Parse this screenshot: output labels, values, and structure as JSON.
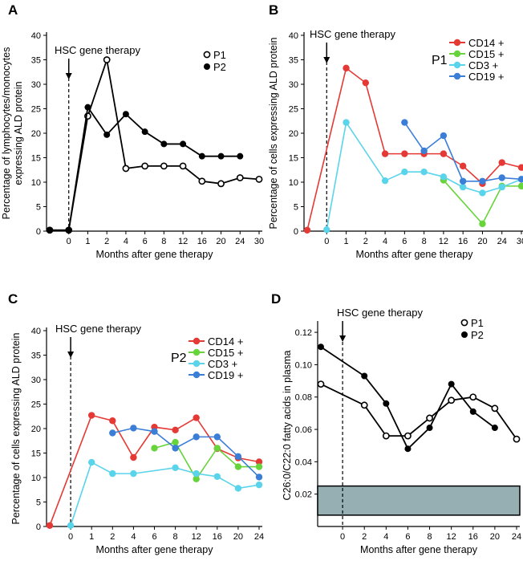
{
  "figure_title": "",
  "chart_data": [
    {
      "panel": "A",
      "type": "line",
      "title": "",
      "annotation": "HSC gene therapy",
      "ylabel": "Percentage of lymphocytes/monocytes expressing ALD protein",
      "ylabel_lines": [
        "Percentage of lymphocytes/monocytes",
        "expressing ALD protein"
      ],
      "xlabel": "Months after gene therapy",
      "ylim": [
        0,
        40
      ],
      "yticks": [
        "0",
        "5",
        "10",
        "15",
        "20",
        "25",
        "30",
        "35",
        "40"
      ],
      "x_categories": [
        "",
        "0",
        "1",
        "2",
        "4",
        "6",
        "8",
        "12",
        "16",
        "20",
        "24",
        "30"
      ],
      "x_label_indices": [
        1,
        2,
        3,
        4,
        5,
        6,
        7,
        8,
        9,
        10,
        11
      ],
      "series": [
        {
          "name": "P1",
          "marker": "open",
          "color": "#000000",
          "x": [
            0,
            1,
            2,
            3,
            4,
            5,
            6,
            7,
            8,
            9,
            10,
            11
          ],
          "y": [
            0.2,
            0.2,
            23.5,
            35,
            12.8,
            13.3,
            13.3,
            13.3,
            10.2,
            9.7,
            10.9,
            10.6
          ]
        },
        {
          "name": "P2",
          "marker": "filled",
          "color": "#000000",
          "x": [
            0,
            1,
            2,
            3,
            4,
            5,
            6,
            7,
            8,
            9,
            10
          ],
          "y": [
            0.2,
            0.2,
            25.3,
            19.7,
            23.9,
            20.3,
            17.8,
            17.8,
            15.3,
            15.3,
            15.3
          ]
        }
      ]
    },
    {
      "panel": "B",
      "type": "line",
      "title": "P1",
      "annotation": "HSC gene therapy",
      "ylabel": "Percentage of cells expressing ALD protein",
      "xlabel": "Months after gene therapy",
      "ylim": [
        0,
        40
      ],
      "yticks": [
        "0",
        "5",
        "10",
        "15",
        "20",
        "25",
        "30",
        "35",
        "40"
      ],
      "x_categories": [
        "",
        "0",
        "1",
        "2",
        "4",
        "6",
        "8",
        "12",
        "16",
        "20",
        "24",
        "30"
      ],
      "x_label_indices": [
        1,
        2,
        3,
        4,
        5,
        6,
        7,
        8,
        9,
        10,
        11
      ],
      "series": [
        {
          "name": "CD14 +",
          "color": "#e53935",
          "x": [
            0,
            2,
            3,
            4,
            5,
            6,
            7,
            8,
            9,
            10,
            11
          ],
          "y": [
            0.2,
            33.3,
            30.3,
            15.8,
            15.8,
            15.8,
            15.8,
            13.3,
            9.7,
            14.0,
            13.0
          ]
        },
        {
          "name": "CD15 +",
          "color": "#66d43a",
          "x": [
            7,
            9,
            10,
            11
          ],
          "y": [
            10.4,
            1.5,
            9.2,
            9.2
          ]
        },
        {
          "name": "CD3 +",
          "color": "#5ad4ea",
          "x": [
            1,
            2,
            4,
            5,
            6,
            7,
            8,
            9,
            10,
            11
          ],
          "y": [
            0.3,
            22.2,
            10.3,
            12.1,
            12.1,
            11.1,
            9.0,
            7.8,
            9.0,
            10.6
          ]
        },
        {
          "name": "CD19 +",
          "color": "#3a7ed8",
          "x": [
            5,
            6,
            7,
            8,
            9,
            10,
            11
          ],
          "y": [
            22.2,
            16.4,
            19.5,
            10.2,
            10.2,
            10.9,
            10.6
          ]
        }
      ]
    },
    {
      "panel": "C",
      "type": "line",
      "title": "P2",
      "annotation": "HSC gene therapy",
      "ylabel": "Percentage of cells expressing ALD protein",
      "xlabel": "Months after gene therapy",
      "ylim": [
        0,
        40
      ],
      "yticks": [
        "0",
        "5",
        "10",
        "15",
        "20",
        "25",
        "30",
        "35",
        "40"
      ],
      "x_categories": [
        "",
        "0",
        "1",
        "2",
        "4",
        "6",
        "8",
        "12",
        "16",
        "20",
        "24"
      ],
      "x_label_indices": [
        1,
        2,
        3,
        4,
        5,
        6,
        7,
        8,
        9,
        10
      ],
      "series": [
        {
          "name": "CD14 +",
          "color": "#e53935",
          "x": [
            0,
            2,
            3,
            4,
            5,
            6,
            7,
            8,
            9,
            10
          ],
          "y": [
            0.2,
            22.7,
            21.6,
            14.1,
            20.3,
            19.7,
            22.2,
            15.9,
            14.0,
            13.2
          ]
        },
        {
          "name": "CD15 +",
          "color": "#66d43a",
          "x": [
            5,
            6,
            7,
            8,
            9,
            10
          ],
          "y": [
            16.0,
            17.2,
            9.7,
            16.0,
            12.2,
            12.2
          ]
        },
        {
          "name": "CD3 +",
          "color": "#5ad4ea",
          "x": [
            1,
            2,
            3,
            4,
            6,
            7,
            8,
            9,
            10
          ],
          "y": [
            0.2,
            13.1,
            10.8,
            10.8,
            12.0,
            10.8,
            10.2,
            7.8,
            8.5
          ]
        },
        {
          "name": "CD19 +",
          "color": "#3a7ed8",
          "x": [
            3,
            4,
            5,
            6,
            7,
            8,
            9,
            10
          ],
          "y": [
            19.1,
            20.1,
            19.4,
            16.0,
            18.3,
            18.3,
            14.3,
            10.1
          ]
        }
      ]
    },
    {
      "panel": "D",
      "type": "line",
      "title": "",
      "annotation": "HSC gene therapy",
      "ylabel": "C26:0/C22:0 fatty acids in plasma",
      "xlabel": "Months after gene therapy",
      "ylim": [
        0,
        0.125
      ],
      "yticks": [
        "0.02",
        "0.04",
        "0.06",
        "0.08",
        "0.10",
        "0.12"
      ],
      "ytick_values": [
        0.02,
        0.04,
        0.06,
        0.08,
        0.1,
        0.12
      ],
      "x_categories": [
        "",
        "0",
        "2",
        "4",
        "6",
        "8",
        "12",
        "16",
        "20",
        "24"
      ],
      "x_label_indices": [
        1,
        2,
        3,
        4,
        5,
        6,
        7,
        8,
        9
      ],
      "normal_range": [
        0.007,
        0.025
      ],
      "normal_range_color": "#96afb3",
      "series": [
        {
          "name": "P1",
          "marker": "open",
          "color": "#000000",
          "x": [
            0,
            2,
            3,
            4,
            5,
            6,
            7,
            8,
            9
          ],
          "y": [
            0.088,
            0.075,
            0.056,
            0.056,
            0.067,
            0.078,
            0.08,
            0.073,
            0.054
          ]
        },
        {
          "name": "P2",
          "marker": "filled",
          "color": "#000000",
          "x": [
            0,
            2,
            3,
            4,
            5,
            6,
            7,
            8
          ],
          "y": [
            0.111,
            0.093,
            0.076,
            0.048,
            0.061,
            0.088,
            0.071,
            0.061
          ]
        }
      ]
    }
  ]
}
